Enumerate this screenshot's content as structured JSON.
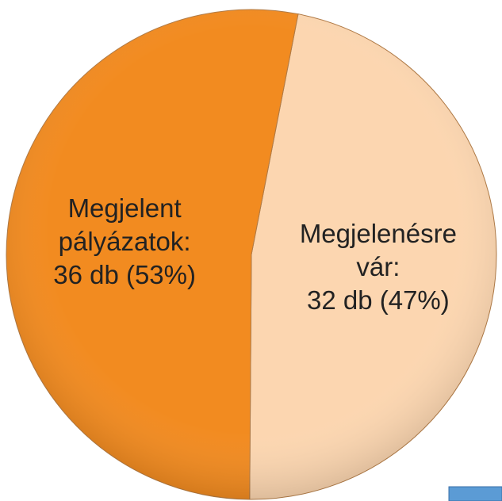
{
  "chart_data": {
    "type": "pie",
    "categories": [
      "Megjelenésre vár:",
      "Megjelent pályázatok:"
    ],
    "values": [
      32,
      36
    ],
    "value_labels": [
      "32 db (47%)",
      "36 db (53%)"
    ],
    "colors": [
      "#fcd6b0",
      "#f28b20"
    ]
  }
}
